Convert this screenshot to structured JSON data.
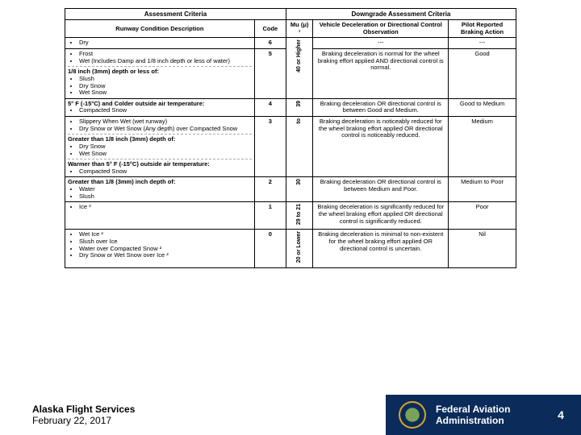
{
  "header": {
    "assessment": "Assessment Criteria",
    "downgrade": "Downgrade Assessment Criteria",
    "desc": "Runway Condition Description",
    "code": "Code",
    "mu": "Mu (μ) ¹",
    "obs": "Vehicle Deceleration or Directional Control Observation",
    "pilot": "Pilot Reported Braking Action"
  },
  "mu": {
    "r6": "40 or Higher",
    "r5": "39",
    "r4": "to",
    "r3": "30",
    "r2": "29",
    "r1b": "to",
    "r1": "21",
    "r0": "20 or Lower"
  },
  "rows": {
    "r6": {
      "code": "6",
      "desc_items": [
        "Dry"
      ],
      "obs": "---",
      "pilot": "---"
    },
    "r5": {
      "code": "5",
      "desc_items_a": [
        "Frost",
        "Wet (Includes Damp and 1/8 inch depth or less of water)"
      ],
      "desc_head": "1/8 inch (3mm) depth or less of:",
      "desc_items_b": [
        "Slush",
        "Dry Snow",
        "Wet Snow"
      ],
      "obs": "Braking deceleration is normal for the wheel braking effort applied AND directional control is normal.",
      "pilot": "Good"
    },
    "r4": {
      "code": "4",
      "desc_head": "5° F (-15°C) and Colder outside air temperature:",
      "desc_items": [
        "Compacted Snow"
      ],
      "obs": "Braking deceleration OR directional control is between Good and Medium.",
      "pilot": "Good to Medium"
    },
    "r3": {
      "code": "3",
      "desc_items_a": [
        "Slippery When Wet (wet runway)",
        "Dry Snow or Wet Snow (Any depth) over Compacted Snow"
      ],
      "desc_head_b": "Greater than 1/8 inch (3mm) depth of:",
      "desc_items_b": [
        "Dry Snow",
        "Wet Snow"
      ],
      "desc_head_c": "Warmer than 5° F (-15°C) outside air temperature:",
      "desc_items_c": [
        "Compacted Snow"
      ],
      "obs": "Braking deceleration is noticeably reduced for the wheel braking effort applied OR directional control is noticeably reduced.",
      "pilot": "Medium"
    },
    "r2": {
      "code": "2",
      "desc_head": "Greater than 1/8 (3mm) inch depth of:",
      "desc_items": [
        "Water",
        "Slush"
      ],
      "obs": "Braking deceleration OR directional control is between Medium and Poor.",
      "pilot": "Medium to Poor"
    },
    "r1": {
      "code": "1",
      "desc_items": [
        "Ice ³"
      ],
      "obs": "Braking deceleration is significantly reduced for the wheel braking effort applied OR directional control is significantly reduced.",
      "pilot": "Poor"
    },
    "r0": {
      "code": "0",
      "desc_items": [
        "Wet Ice ²",
        "Slush over Ice",
        "Water over Compacted Snow ²",
        "Dry Snow or Wet Snow over Ice ²"
      ],
      "obs": "Braking deceleration is minimal to non-existent for the wheel braking effort applied OR directional control is uncertain.",
      "pilot": "Nil"
    }
  },
  "footer": {
    "line1": "Alaska Flight Services",
    "line2": "February  22, 2017",
    "faa1": "Federal Aviation",
    "faa2": "Administration",
    "page": "4"
  },
  "colors": {
    "footer_bg": "#0b2b5a"
  }
}
